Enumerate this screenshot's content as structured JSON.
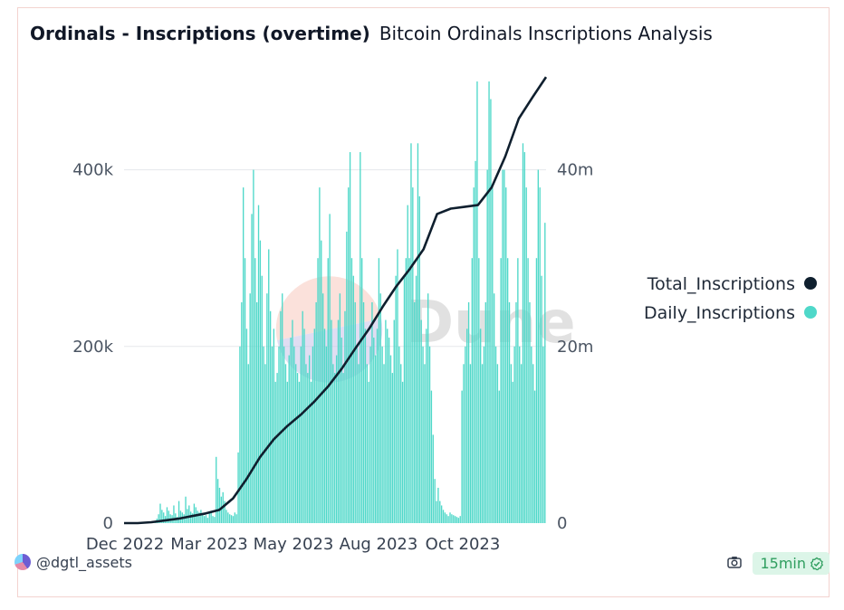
{
  "header": {
    "title": "Ordinals - Inscriptions (overtime)",
    "subtitle": "Bitcoin Ordinals Inscriptions Analysis"
  },
  "footer": {
    "author": "@dgtl_assets",
    "refresh_label": "15min"
  },
  "colors": {
    "daily": "#4fd8c9",
    "total": "#0f1f2e",
    "grid": "#e5e7eb",
    "axis_text": "#4b5563",
    "badge_bg": "#dcf5e8",
    "badge_text": "#2f9e5f"
  },
  "watermark": "Dune",
  "chart_data": {
    "type": "bar+line",
    "title": "Ordinals - Inscriptions (overtime)",
    "x_tick_labels": [
      "Dec 2022",
      "Mar 2023",
      "May 2023",
      "Aug 2023",
      "Oct 2023"
    ],
    "y_left": {
      "ticks": [
        0,
        200000,
        400000
      ],
      "tick_labels": [
        "0",
        "200k",
        "400k"
      ],
      "range": [
        0,
        500000
      ]
    },
    "y_right": {
      "ticks": [
        0,
        20000000,
        40000000
      ],
      "tick_labels": [
        "0",
        "20m",
        "40m"
      ],
      "range": [
        0,
        50000000
      ]
    },
    "legend": [
      "Total_Inscriptions",
      "Daily_Inscriptions"
    ],
    "series": [
      {
        "name": "Daily_Inscriptions",
        "axis": "left",
        "kind": "bar",
        "values": [
          0,
          0,
          0,
          0,
          0,
          0,
          0,
          0,
          0,
          0,
          0,
          0,
          0,
          0,
          0,
          0,
          0,
          0,
          1000,
          5000,
          10000,
          22000,
          15000,
          12000,
          8000,
          18000,
          14000,
          10000,
          9000,
          20000,
          11000,
          7000,
          25000,
          14000,
          12000,
          10000,
          30000,
          16000,
          20000,
          13000,
          11000,
          22000,
          18000,
          14000,
          12000,
          15000,
          10000,
          8000,
          9000,
          6000,
          12000,
          14000,
          8000,
          7000,
          75000,
          50000,
          40000,
          30000,
          35000,
          25000,
          15000,
          12000,
          10000,
          9000,
          8000,
          12000,
          10000,
          80000,
          200000,
          250000,
          380000,
          300000,
          220000,
          180000,
          260000,
          350000,
          400000,
          300000,
          250000,
          360000,
          320000,
          280000,
          200000,
          180000,
          260000,
          310000,
          240000,
          200000,
          220000,
          160000,
          170000,
          200000,
          240000,
          260000,
          200000,
          180000,
          160000,
          190000,
          210000,
          230000,
          200000,
          180000,
          170000,
          160000,
          200000,
          240000,
          220000,
          180000,
          170000,
          190000,
          160000,
          200000,
          220000,
          250000,
          300000,
          380000,
          320000,
          260000,
          220000,
          200000,
          300000,
          350000,
          230000,
          180000,
          170000,
          190000,
          230000,
          260000,
          210000,
          170000,
          240000,
          330000,
          380000,
          420000,
          300000,
          280000,
          250000,
          200000,
          180000,
          420000,
          300000,
          250000,
          220000,
          180000,
          160000,
          200000,
          250000,
          210000,
          190000,
          220000,
          300000,
          260000,
          200000,
          180000,
          230000,
          220000,
          210000,
          190000,
          170000,
          230000,
          280000,
          310000,
          200000,
          180000,
          160000,
          280000,
          300000,
          360000,
          300000,
          430000,
          380000,
          250000,
          280000,
          430000,
          370000,
          230000,
          200000,
          180000,
          220000,
          260000,
          200000,
          150000,
          100000,
          50000,
          25000,
          40000,
          25000,
          20000,
          15000,
          12000,
          10000,
          8000,
          12000,
          10000,
          9000,
          8000,
          7000,
          6000,
          8000,
          150000,
          180000,
          200000,
          220000,
          250000,
          180000,
          300000,
          380000,
          410000,
          500000,
          300000,
          220000,
          180000,
          200000,
          250000,
          400000,
          500000,
          480000,
          380000,
          260000,
          200000,
          180000,
          150000,
          300000,
          400000,
          400000,
          380000,
          300000,
          250000,
          180000,
          160000,
          200000,
          250000,
          300000,
          200000,
          180000,
          430000,
          420000,
          380000,
          300000,
          250000,
          200000,
          180000,
          150000,
          300000,
          400000,
          380000,
          280000,
          200000,
          340000
        ]
      },
      {
        "name": "Total_Inscriptions",
        "axis": "right",
        "kind": "line",
        "values": [
          0,
          0,
          100000,
          300000,
          500000,
          800000,
          1100000,
          1500000,
          2800000,
          5000000,
          7500000,
          9500000,
          11000000,
          12300000,
          13800000,
          15500000,
          17500000,
          19800000,
          22000000,
          24500000,
          26800000,
          28800000,
          31000000,
          35000000,
          35600000,
          35800000,
          36000000,
          38000000,
          41500000,
          45800000,
          48200000,
          50500000
        ]
      }
    ]
  }
}
